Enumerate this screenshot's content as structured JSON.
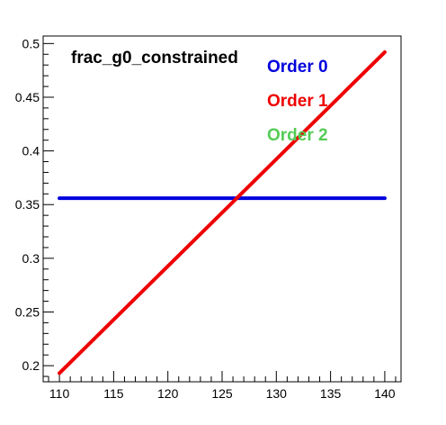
{
  "chart_data": {
    "type": "line",
    "title": "frac_g0_constrained",
    "xlabel": "",
    "ylabel": "",
    "xlim": [
      108.5,
      141.5
    ],
    "ylim": [
      0.185,
      0.507
    ],
    "x_ticks": [
      110,
      115,
      120,
      125,
      130,
      135,
      140
    ],
    "x_tick_labels": [
      "110",
      "115",
      "120",
      "125",
      "130",
      "135",
      "140"
    ],
    "y_ticks": [
      0.2,
      0.25,
      0.3,
      0.35,
      0.4,
      0.45,
      0.5
    ],
    "y_tick_labels": [
      "0.2",
      "0.25",
      "0.3",
      "0.35",
      "0.4",
      "0.45",
      "0.5"
    ],
    "grid": false,
    "legend_position": "top-right",
    "series": [
      {
        "name": "Order 0",
        "color": "#0000dd",
        "x": [
          110,
          140
        ],
        "y": [
          0.356,
          0.356
        ]
      },
      {
        "name": "Order 1",
        "color": "#ee0000",
        "x": [
          110,
          140
        ],
        "y": [
          0.193,
          0.492
        ]
      },
      {
        "name": "Order 2",
        "color": "#55cc55",
        "x": [],
        "y": []
      }
    ]
  }
}
